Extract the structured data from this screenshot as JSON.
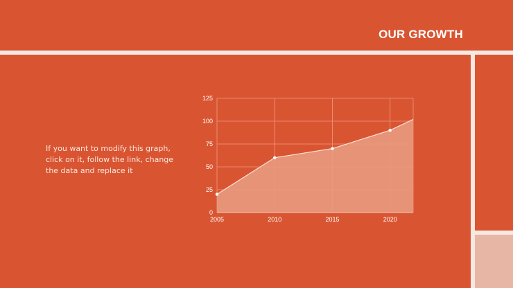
{
  "header": {
    "title": "OUR GROWTH"
  },
  "body": {
    "description": "If you want to modify this graph, click on it, follow the link, change the data and replace it"
  },
  "colors": {
    "background": "#D95532",
    "divider": "#F6E9E3",
    "accent_box": "#E8B6A5",
    "area_fill": "#E89A80",
    "line": "#FBE3DA"
  },
  "chart_data": {
    "type": "area",
    "x": [
      2005,
      2010,
      2015,
      2020,
      2022
    ],
    "values": [
      20,
      60,
      70,
      90,
      102
    ],
    "markers": [
      true,
      true,
      true,
      true,
      false
    ],
    "xticks": [
      "2005",
      "2010",
      "2015",
      "2020"
    ],
    "yticks": [
      "0",
      "25",
      "50",
      "75",
      "100",
      "125"
    ],
    "xlim": [
      2005,
      2022
    ],
    "ylim": [
      0,
      125
    ],
    "title": "",
    "xlabel": "",
    "ylabel": "",
    "grid": true
  }
}
